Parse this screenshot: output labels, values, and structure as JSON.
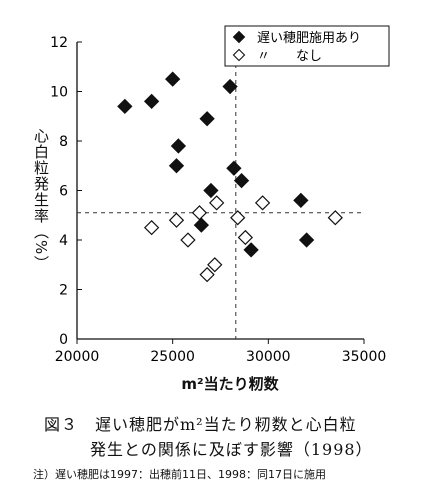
{
  "chart_data": {
    "type": "scatter",
    "title": "",
    "xlabel": "m²当たり籾数",
    "ylabel": "心白粒発生率（%）",
    "xlim": [
      20000,
      35000
    ],
    "ylim": [
      0,
      12
    ],
    "xticks": [
      20000,
      25000,
      30000,
      35000
    ],
    "yticks": [
      0,
      2,
      4,
      6,
      8,
      10,
      12
    ],
    "grid": false,
    "legend_position": "top-right",
    "reference_lines": {
      "x": 28300,
      "y": 5.1
    },
    "series": [
      {
        "name": "遅い穂肥施用あり",
        "marker": "filled-diamond",
        "color": "#111111",
        "points": [
          [
            22500,
            9.4
          ],
          [
            23900,
            9.6
          ],
          [
            25000,
            10.5
          ],
          [
            25300,
            7.8
          ],
          [
            25200,
            7.0
          ],
          [
            26800,
            8.9
          ],
          [
            28000,
            10.2
          ],
          [
            28200,
            6.9
          ],
          [
            28600,
            6.4
          ],
          [
            27000,
            6.0
          ],
          [
            26500,
            4.6
          ],
          [
            29100,
            3.6
          ],
          [
            31700,
            5.6
          ],
          [
            32000,
            4.0
          ]
        ]
      },
      {
        "name": "〃　　なし",
        "marker": "open-diamond",
        "color": "#111111",
        "points": [
          [
            25200,
            4.8
          ],
          [
            23900,
            4.5
          ],
          [
            25800,
            4.0
          ],
          [
            26400,
            5.1
          ],
          [
            27300,
            5.5
          ],
          [
            27200,
            3.0
          ],
          [
            26800,
            2.6
          ],
          [
            28400,
            4.9
          ],
          [
            28800,
            4.1
          ],
          [
            29700,
            5.5
          ],
          [
            33500,
            4.9
          ]
        ]
      }
    ]
  },
  "figure": {
    "ylabel_text": "心白粒発生率（%）",
    "xlabel_text": "m²当たり籾数",
    "caption_line1": "図３　遅い穂肥がm²当たり籾数と心白粒",
    "caption_line2": "発生との関係に及ぼす影響（1998）",
    "note": "注）遅い穂肥は1997：出穂前11日、1998：同17日に施用"
  }
}
